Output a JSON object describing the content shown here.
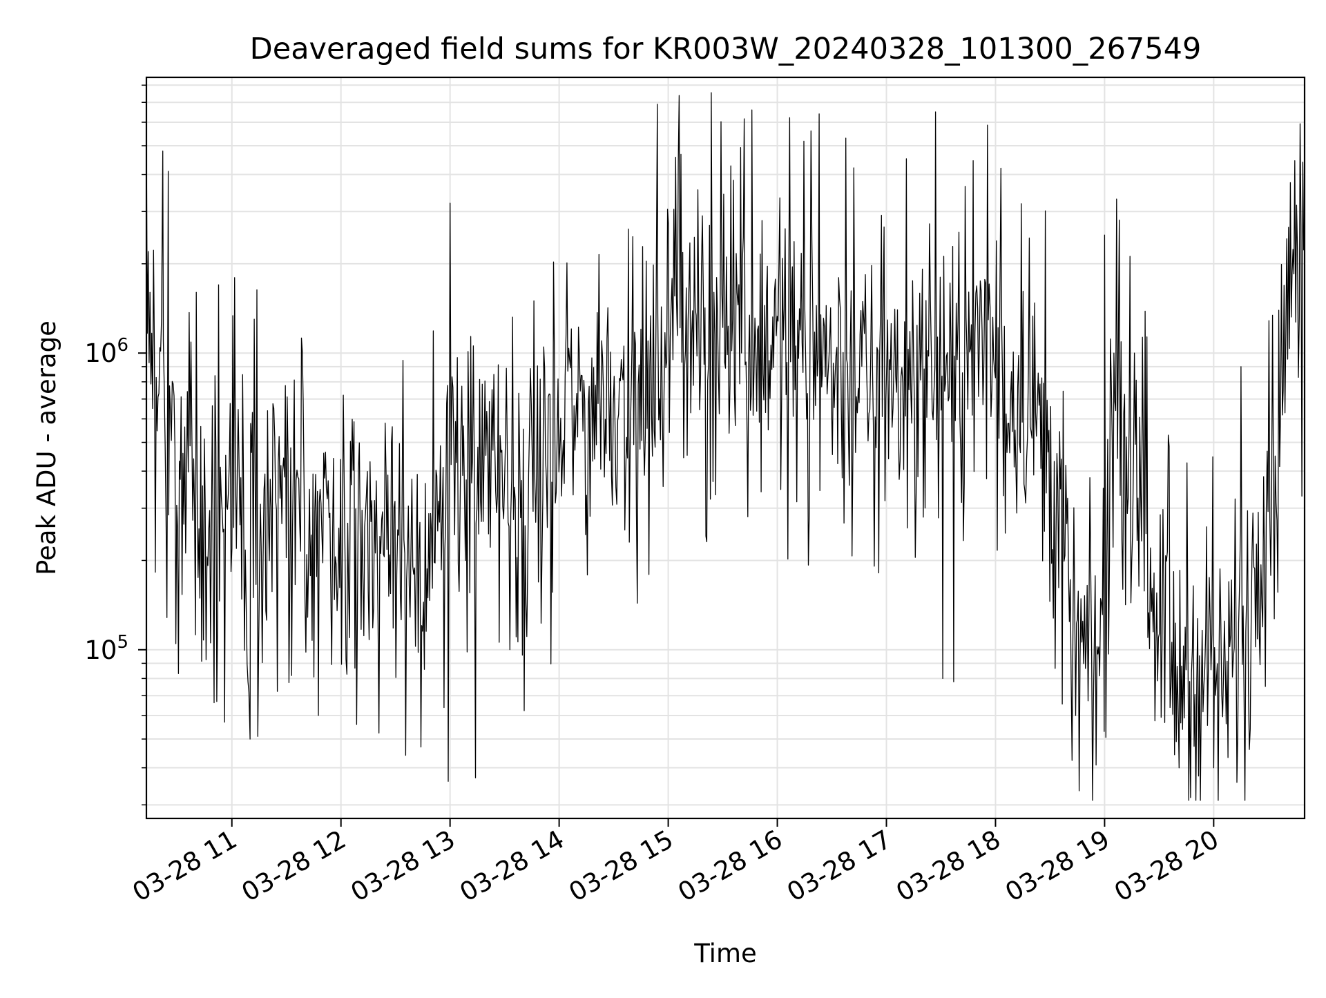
{
  "chart_data": {
    "type": "line",
    "title": "Deaveraged field sums for KR003W_20240328_101300_267549",
    "xlabel": "Time",
    "ylabel": "Peak ADU - average",
    "x_axis": {
      "type": "time",
      "start": "2024-03-28 10:13",
      "end": "2024-03-28 20:50",
      "ticks": [
        {
          "value": "2024-03-28 11:00",
          "label": "03-28 11"
        },
        {
          "value": "2024-03-28 12:00",
          "label": "03-28 12"
        },
        {
          "value": "2024-03-28 13:00",
          "label": "03-28 13"
        },
        {
          "value": "2024-03-28 14:00",
          "label": "03-28 14"
        },
        {
          "value": "2024-03-28 15:00",
          "label": "03-28 15"
        },
        {
          "value": "2024-03-28 16:00",
          "label": "03-28 16"
        },
        {
          "value": "2024-03-28 17:00",
          "label": "03-28 17"
        },
        {
          "value": "2024-03-28 18:00",
          "label": "03-28 18"
        },
        {
          "value": "2024-03-28 19:00",
          "label": "03-28 19"
        },
        {
          "value": "2024-03-28 20:00",
          "label": "03-28 20"
        }
      ]
    },
    "y_axis": {
      "scale": "log",
      "ylim": [
        27000,
        8500000
      ],
      "major_ticks": [
        {
          "value": 100000,
          "base": "10",
          "exp": "5"
        },
        {
          "value": 1000000,
          "base": "10",
          "exp": "6"
        }
      ]
    },
    "grid": true,
    "legend": "none",
    "line_color": "#000000",
    "series": [
      {
        "trend": [
          {
            "t": "2024-03-28 10:13",
            "y": 1500000
          },
          {
            "t": "2024-03-28 10:25",
            "y": 550000
          },
          {
            "t": "2024-03-28 10:45",
            "y": 300000
          },
          {
            "t": "2024-03-28 11:30",
            "y": 280000
          },
          {
            "t": "2024-03-28 12:30",
            "y": 260000
          },
          {
            "t": "2024-03-28 12:55",
            "y": 200000
          },
          {
            "t": "2024-03-28 13:00",
            "y": 600000
          },
          {
            "t": "2024-03-28 13:20",
            "y": 400000
          },
          {
            "t": "2024-03-28 13:40",
            "y": 300000
          },
          {
            "t": "2024-03-28 14:10",
            "y": 650000
          },
          {
            "t": "2024-03-28 14:50",
            "y": 800000
          },
          {
            "t": "2024-03-28 15:00",
            "y": 1300000
          },
          {
            "t": "2024-03-28 15:30",
            "y": 1200000
          },
          {
            "t": "2024-03-28 16:00",
            "y": 1200000
          },
          {
            "t": "2024-03-28 16:30",
            "y": 900000
          },
          {
            "t": "2024-03-28 17:00",
            "y": 750000
          },
          {
            "t": "2024-03-28 17:30",
            "y": 900000
          },
          {
            "t": "2024-03-28 18:00",
            "y": 1000000
          },
          {
            "t": "2024-03-28 18:30",
            "y": 500000
          },
          {
            "t": "2024-03-28 18:45",
            "y": 100000
          },
          {
            "t": "2024-03-28 18:58",
            "y": 100000
          },
          {
            "t": "2024-03-28 19:05",
            "y": 600000
          },
          {
            "t": "2024-03-28 19:20",
            "y": 280000
          },
          {
            "t": "2024-03-28 19:35",
            "y": 90000
          },
          {
            "t": "2024-03-28 20:05",
            "y": 90000
          },
          {
            "t": "2024-03-28 20:15",
            "y": 110000
          },
          {
            "t": "2024-03-28 20:25",
            "y": 250000
          },
          {
            "t": "2024-03-28 20:35",
            "y": 550000
          },
          {
            "t": "2024-03-28 20:40",
            "y": 1500000
          },
          {
            "t": "2024-03-28 20:50",
            "y": 1400000
          }
        ],
        "spikes": [
          {
            "t": "2024-03-28 10:22",
            "y": 4800000
          },
          {
            "t": "2024-03-28 10:25",
            "y": 4100000
          },
          {
            "t": "2024-03-28 10:56",
            "y": 57000
          },
          {
            "t": "2024-03-28 11:10",
            "y": 50000
          },
          {
            "t": "2024-03-28 12:44",
            "y": 47000
          },
          {
            "t": "2024-03-28 12:59",
            "y": 36000
          },
          {
            "t": "2024-03-28 13:00",
            "y": 3200000
          },
          {
            "t": "2024-03-28 13:14",
            "y": 37000
          },
          {
            "t": "2024-03-28 14:54",
            "y": 6900000
          },
          {
            "t": "2024-03-28 15:46",
            "y": 6600000
          },
          {
            "t": "2024-03-28 16:23",
            "y": 6400000
          },
          {
            "t": "2024-03-28 17:27",
            "y": 6500000
          },
          {
            "t": "2024-03-28 17:31",
            "y": 80000
          },
          {
            "t": "2024-03-28 17:37",
            "y": 78000
          },
          {
            "t": "2024-03-28 18:03",
            "y": 4200000
          },
          {
            "t": "2024-03-28 19:00",
            "y": 2500000
          },
          {
            "t": "2024-03-28 19:41",
            "y": 40000
          },
          {
            "t": "2024-03-28 20:00",
            "y": 40000
          },
          {
            "t": "2024-03-28 20:15",
            "y": 900000
          },
          {
            "t": "2024-03-28 20:49",
            "y": 4400000
          }
        ]
      }
    ]
  }
}
